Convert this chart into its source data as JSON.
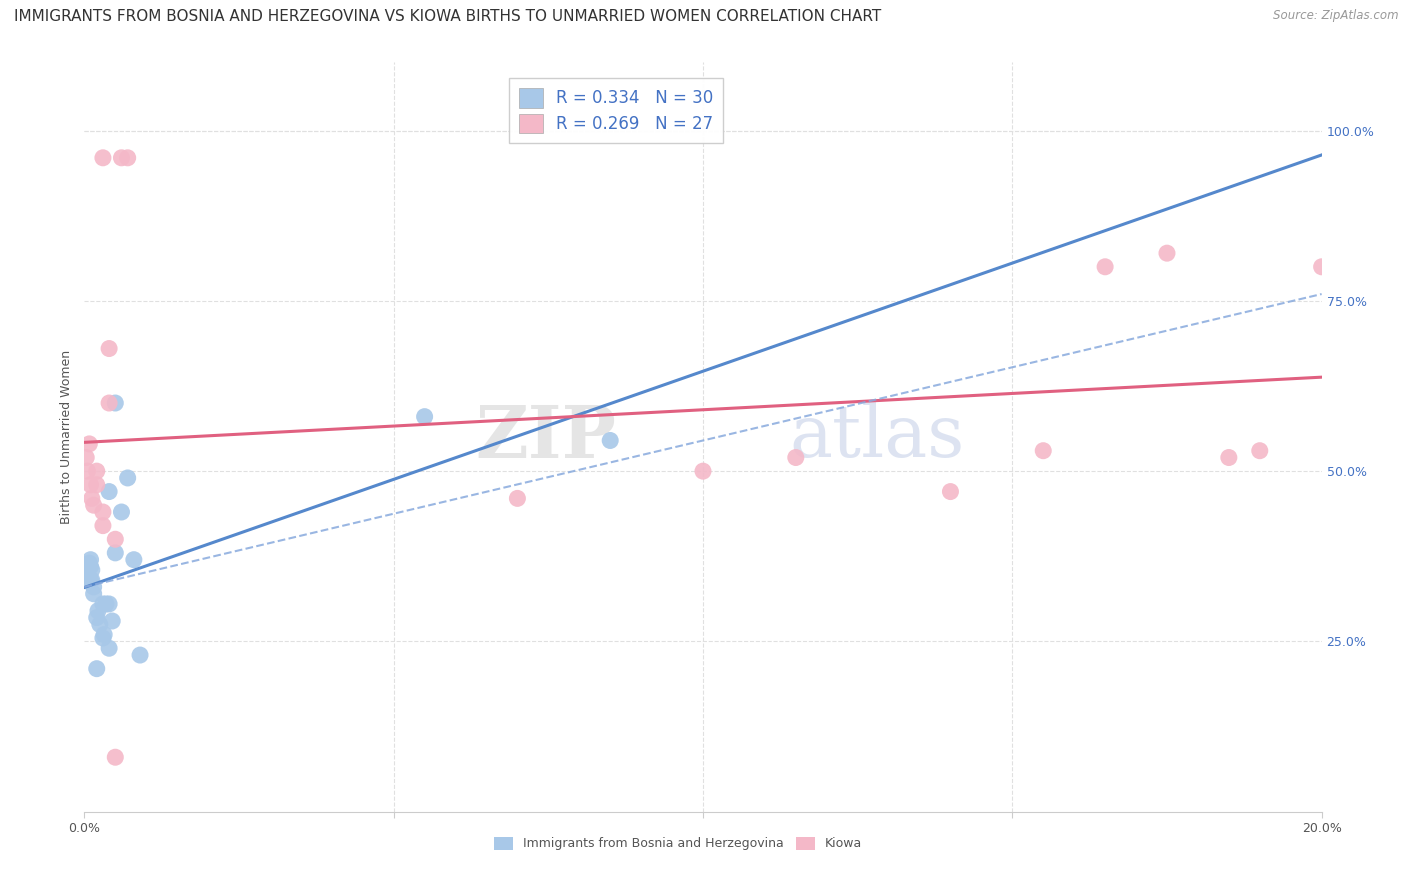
{
  "title": "IMMIGRANTS FROM BOSNIA AND HERZEGOVINA VS KIOWA BIRTHS TO UNMARRIED WOMEN CORRELATION CHART",
  "source": "Source: ZipAtlas.com",
  "ylabel": "Births to Unmarried Women",
  "ylabel_right_ticks": [
    "100.0%",
    "75.0%",
    "50.0%",
    "25.0%"
  ],
  "ylabel_right_vals": [
    1.0,
    0.75,
    0.5,
    0.25
  ],
  "legend_blue_R": "0.334",
  "legend_blue_N": "30",
  "legend_pink_R": "0.269",
  "legend_pink_N": "27",
  "legend_label_blue": "Immigrants from Bosnia and Herzegovina",
  "legend_label_pink": "Kiowa",
  "blue_color": "#a8c8e8",
  "pink_color": "#f4b8c8",
  "blue_line_color": "#5588cc",
  "pink_line_color": "#e06080",
  "dashed_line_color": "#88aadd",
  "watermark": "ZIPatlas",
  "blue_dots_x": [
    0.0003,
    0.0005,
    0.0008,
    0.001,
    0.001,
    0.001,
    0.0012,
    0.0012,
    0.0015,
    0.0015,
    0.002,
    0.002,
    0.0022,
    0.0025,
    0.003,
    0.003,
    0.0032,
    0.0035,
    0.004,
    0.004,
    0.004,
    0.0045,
    0.005,
    0.005,
    0.006,
    0.007,
    0.008,
    0.009,
    0.055,
    0.085
  ],
  "blue_dots_y": [
    0.355,
    0.345,
    0.365,
    0.34,
    0.36,
    0.37,
    0.34,
    0.355,
    0.33,
    0.32,
    0.21,
    0.285,
    0.295,
    0.275,
    0.305,
    0.255,
    0.26,
    0.305,
    0.24,
    0.305,
    0.47,
    0.28,
    0.6,
    0.38,
    0.44,
    0.49,
    0.37,
    0.23,
    0.58,
    0.545
  ],
  "pink_dots_x": [
    0.0003,
    0.0005,
    0.0008,
    0.001,
    0.0012,
    0.0015,
    0.002,
    0.002,
    0.003,
    0.003,
    0.004,
    0.005,
    0.006,
    0.007,
    0.003,
    0.004,
    0.005,
    0.07,
    0.1,
    0.115,
    0.14,
    0.155,
    0.165,
    0.175,
    0.185,
    0.19,
    0.2
  ],
  "pink_dots_y": [
    0.52,
    0.5,
    0.54,
    0.48,
    0.46,
    0.45,
    0.5,
    0.48,
    0.44,
    0.42,
    0.6,
    0.4,
    0.96,
    0.96,
    0.96,
    0.68,
    0.08,
    0.46,
    0.5,
    0.52,
    0.47,
    0.53,
    0.8,
    0.82,
    0.52,
    0.53,
    0.8
  ],
  "xmin": 0.0,
  "xmax": 0.2,
  "ymin": 0.0,
  "ymax": 1.1,
  "grid_color": "#e0e0e0",
  "background_color": "#ffffff",
  "title_fontsize": 11,
  "axis_label_fontsize": 9,
  "tick_label_fontsize": 9,
  "legend_fontsize": 12
}
